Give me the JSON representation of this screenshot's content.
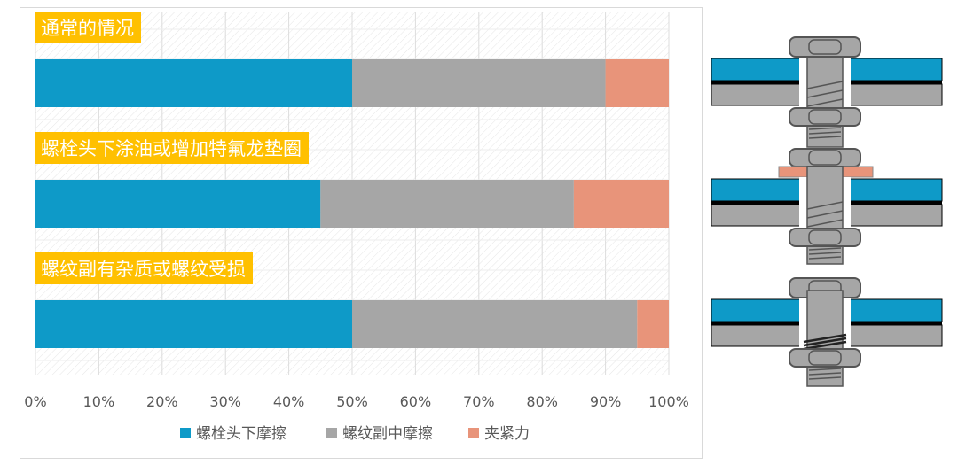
{
  "chart_data": {
    "type": "bar",
    "orientation": "horizontal",
    "stacked": true,
    "categories": [
      "通常的情况",
      "螺栓头下涂油或增加特氟龙垫圈",
      "螺纹副有杂质或螺纹受损"
    ],
    "series": [
      {
        "name": "螺栓头下摩擦",
        "values": [
          50,
          45,
          50
        ],
        "color": "#0e9ac8"
      },
      {
        "name": "螺纹副中摩擦",
        "values": [
          40,
          40,
          45
        ],
        "color": "#a6a6a6"
      },
      {
        "name": "夹紧力",
        "values": [
          10,
          15,
          5
        ],
        "color": "#e8947a"
      }
    ],
    "x_ticks": [
      "0%",
      "10%",
      "20%",
      "30%",
      "40%",
      "50%",
      "60%",
      "70%",
      "80%",
      "90%",
      "100%"
    ],
    "xlim": [
      0,
      100
    ],
    "grid": true,
    "legend_position": "bottom",
    "label_style": {
      "background": "#ffc000",
      "text_color": "#ffffff"
    }
  },
  "diagram": {
    "plate_top_color": "#0e9ac8",
    "plate_bottom_color": "#a6a6a6",
    "bolt_color": "#a6a6a6",
    "washer_color": "#e8947a"
  }
}
